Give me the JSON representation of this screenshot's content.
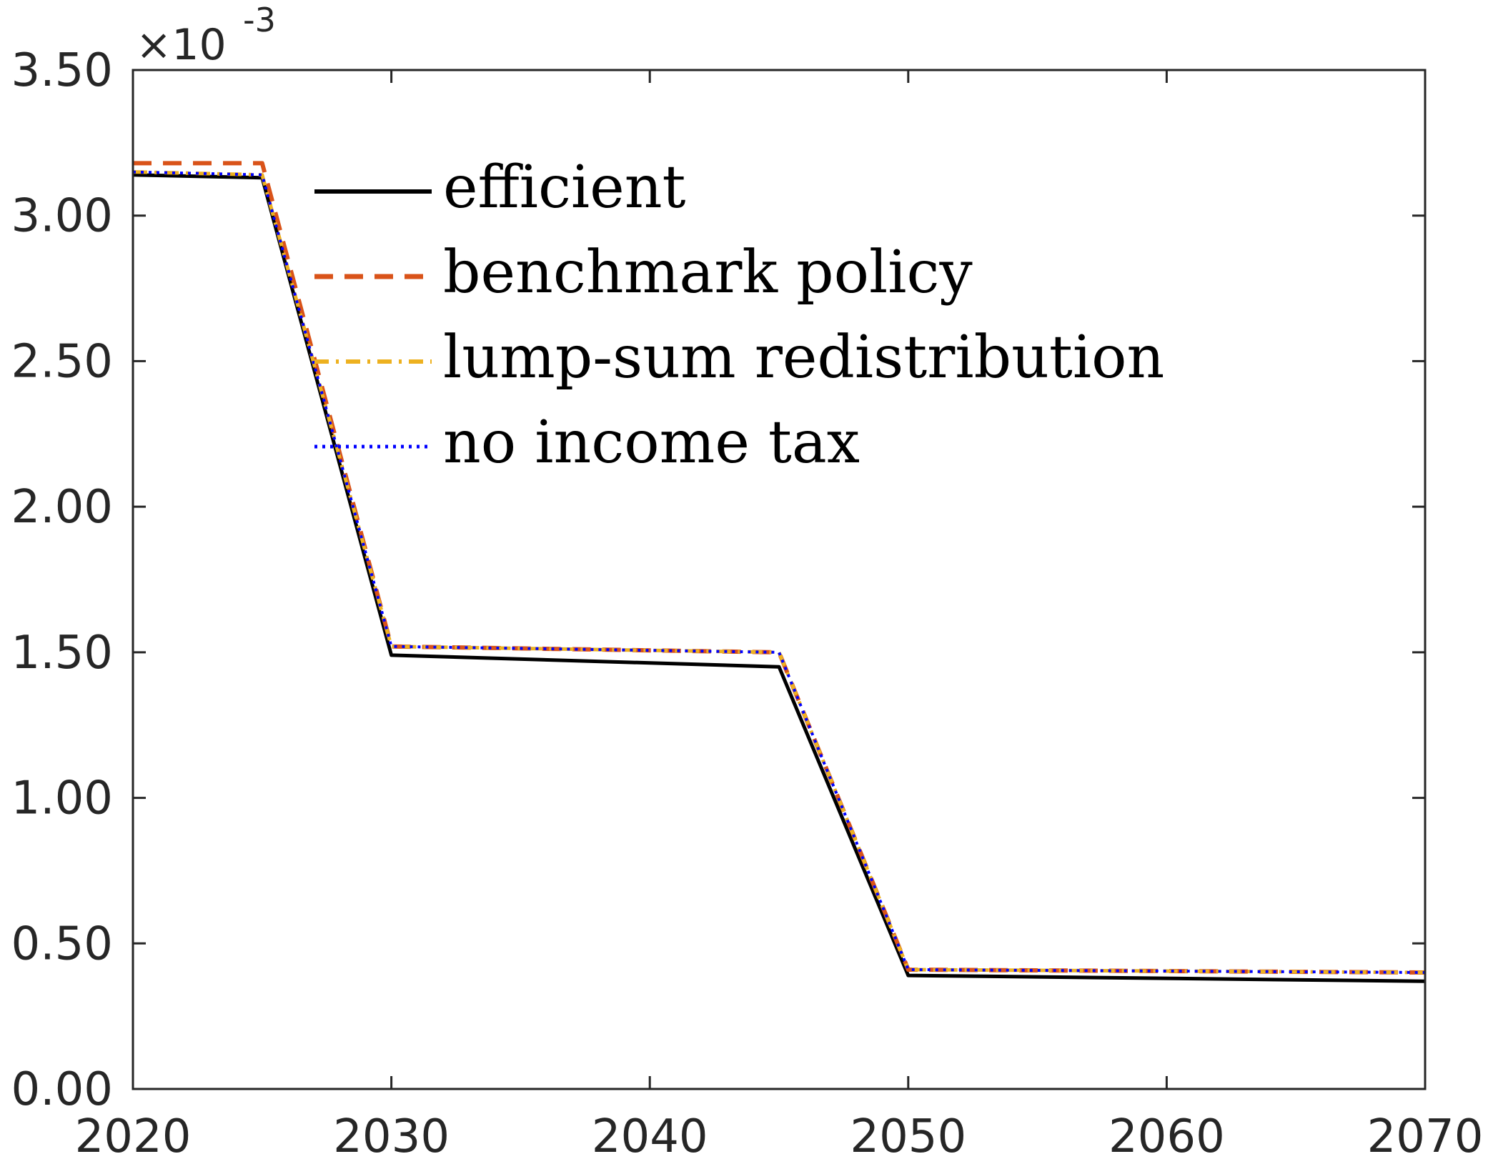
{
  "chart_data": {
    "type": "line",
    "title": "",
    "xlabel": "",
    "ylabel": "",
    "xlim": [
      2020,
      2070
    ],
    "ylim": [
      0,
      3.5
    ],
    "y_exponent_label": {
      "base": "×10",
      "exponent": "-3"
    },
    "grid": false,
    "legend_position": "top-center",
    "x_ticks": [
      2020,
      2030,
      2040,
      2050,
      2060,
      2070
    ],
    "x_tick_labels": [
      "2020",
      "2030",
      "2040",
      "2050",
      "2060",
      "2070"
    ],
    "y_ticks": [
      0,
      0.5,
      1.0,
      1.5,
      2.0,
      2.5,
      3.0,
      3.5
    ],
    "y_tick_labels": [
      "0.00",
      "0.50",
      "1.00",
      "1.50",
      "2.00",
      "2.50",
      "3.00",
      "3.50"
    ],
    "series": [
      {
        "name": "efficient",
        "color": "#000000",
        "style": "solid",
        "x": [
          2020,
          2025,
          2030,
          2045,
          2050,
          2070
        ],
        "y": [
          3.14,
          3.13,
          1.49,
          1.45,
          0.39,
          0.37
        ]
      },
      {
        "name": "benchmark policy",
        "color": "#D95319",
        "style": "dashed",
        "x": [
          2020,
          2025,
          2030,
          2045,
          2050,
          2070
        ],
        "y": [
          3.18,
          3.18,
          1.52,
          1.5,
          0.41,
          0.4
        ]
      },
      {
        "name": "lump-sum redistribution",
        "color": "#EDB120",
        "style": "dash-dot",
        "x": [
          2020,
          2025,
          2030,
          2045,
          2050,
          2070
        ],
        "y": [
          3.15,
          3.14,
          1.52,
          1.5,
          0.41,
          0.4
        ]
      },
      {
        "name": "no income tax",
        "color": "#0000FF",
        "style": "dotted",
        "x": [
          2020,
          2025,
          2030,
          2045,
          2050,
          2070
        ],
        "y": [
          3.15,
          3.14,
          1.52,
          1.5,
          0.41,
          0.4
        ]
      }
    ]
  }
}
